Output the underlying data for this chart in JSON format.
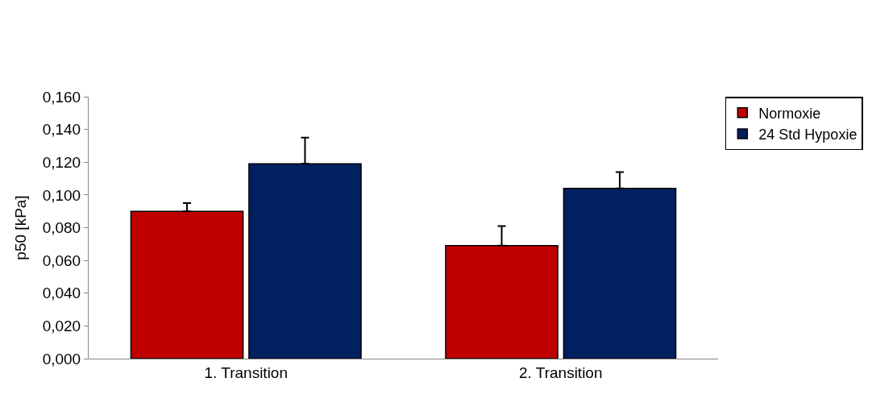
{
  "chart_data": {
    "type": "bar",
    "ylabel": "p50 [kPa]",
    "categories": [
      "1. Transition",
      "2. Transition"
    ],
    "series": [
      {
        "name": "Normoxie",
        "color": "#c00000",
        "values": [
          0.09,
          0.069
        ],
        "errors": [
          [
            0.09,
            0.095
          ],
          [
            0.069,
            0.081
          ]
        ]
      },
      {
        "name": "24 Std Hypoxie",
        "color": "#002060",
        "values": [
          0.119,
          0.104
        ],
        "errors": [
          [
            0.119,
            0.135
          ],
          [
            0.104,
            0.114
          ]
        ]
      }
    ],
    "ylim": [
      0,
      0.16
    ],
    "yticks": [
      {
        "value": 0,
        "label": "0,000"
      },
      {
        "value": 0.02,
        "label": "0,020"
      },
      {
        "value": 0.04,
        "label": "0,040"
      },
      {
        "value": 0.06,
        "label": "0,060"
      },
      {
        "value": 0.08,
        "label": "0,080"
      },
      {
        "value": 0.1,
        "label": "0,100"
      },
      {
        "value": 0.12,
        "label": "0,120"
      },
      {
        "value": 0.14,
        "label": "0,140"
      },
      {
        "value": 0.16,
        "label": "0,160"
      }
    ],
    "legend": "top right"
  }
}
